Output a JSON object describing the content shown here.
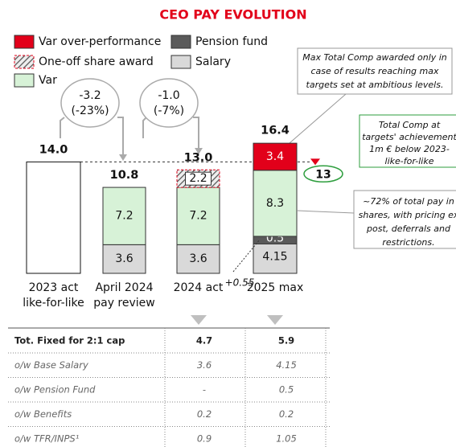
{
  "chart_data": {
    "type": "stacked_bar",
    "title": "CEO PAY EVOLUTION",
    "categories": [
      "2023 act\nlike-for-like",
      "April 2024\npay review",
      "2024 act",
      "2025 max"
    ],
    "series": [
      {
        "name": "Salary",
        "color": "#d9d9d9",
        "values": [
          null,
          3.6,
          3.6,
          4.15
        ]
      },
      {
        "name": "Pension fund",
        "color": "#5a5a5a",
        "values": [
          null,
          null,
          null,
          0.5
        ]
      },
      {
        "name": "Var",
        "color": "#d7f2d7",
        "values": [
          null,
          7.2,
          7.2,
          8.3
        ]
      },
      {
        "name": "One-off share award",
        "color": "#8c8c8c",
        "pattern": "hatch",
        "values": [
          null,
          null,
          2.2,
          null
        ]
      },
      {
        "name": "Var over-performance",
        "color": "#e2001a",
        "values": [
          null,
          null,
          null,
          3.4
        ]
      }
    ],
    "totals": {
      "values": [
        14.0,
        10.8,
        13.0,
        16.4
      ],
      "value_labels": [
        "14.0",
        "10.8",
        "13.0",
        "16.4"
      ]
    },
    "changes": [
      {
        "lines": [
          "-3.2",
          "(-23%)"
        ]
      },
      {
        "lines": [
          "-1.0",
          "(-7%)"
        ]
      }
    ],
    "increment_label": "+0.55",
    "target": {
      "value": 13
    },
    "callouts": [
      {
        "lines": [
          "Max Total Comp awarded only in",
          "case of results reaching max",
          "targets set at ambitious levels."
        ]
      },
      {
        "lines": [
          "Total Comp at",
          "targets' achievement",
          "1m € below 2023-",
          "like-for-like"
        ]
      },
      {
        "lines": [
          "~72% of total pay in",
          "shares, with pricing ex",
          "post, deferrals and",
          "restrictions."
        ]
      }
    ]
  },
  "table": {
    "rows": [
      [
        "Tot. Fixed for 2:1 cap",
        4.7,
        5.9
      ],
      [
        "o/w Base Salary",
        3.6,
        4.15
      ],
      [
        "o/w Pension Fund",
        "-",
        0.5
      ],
      [
        "o/w Benefits",
        0.2,
        0.2
      ],
      [
        "o/w TFR/INPS¹",
        0.9,
        1.05
      ]
    ]
  }
}
